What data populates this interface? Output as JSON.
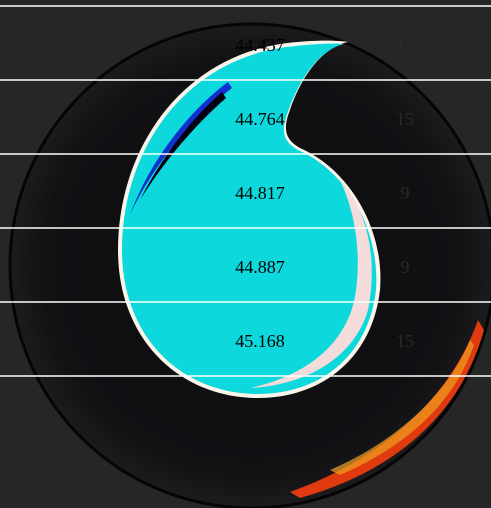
{
  "table": {
    "rows": [
      [
        "44.437",
        "12"
      ],
      [
        "44.764",
        "15"
      ],
      [
        "44.817",
        "9"
      ],
      [
        "44.887",
        "9"
      ],
      [
        "45.168",
        "15"
      ]
    ]
  }
}
